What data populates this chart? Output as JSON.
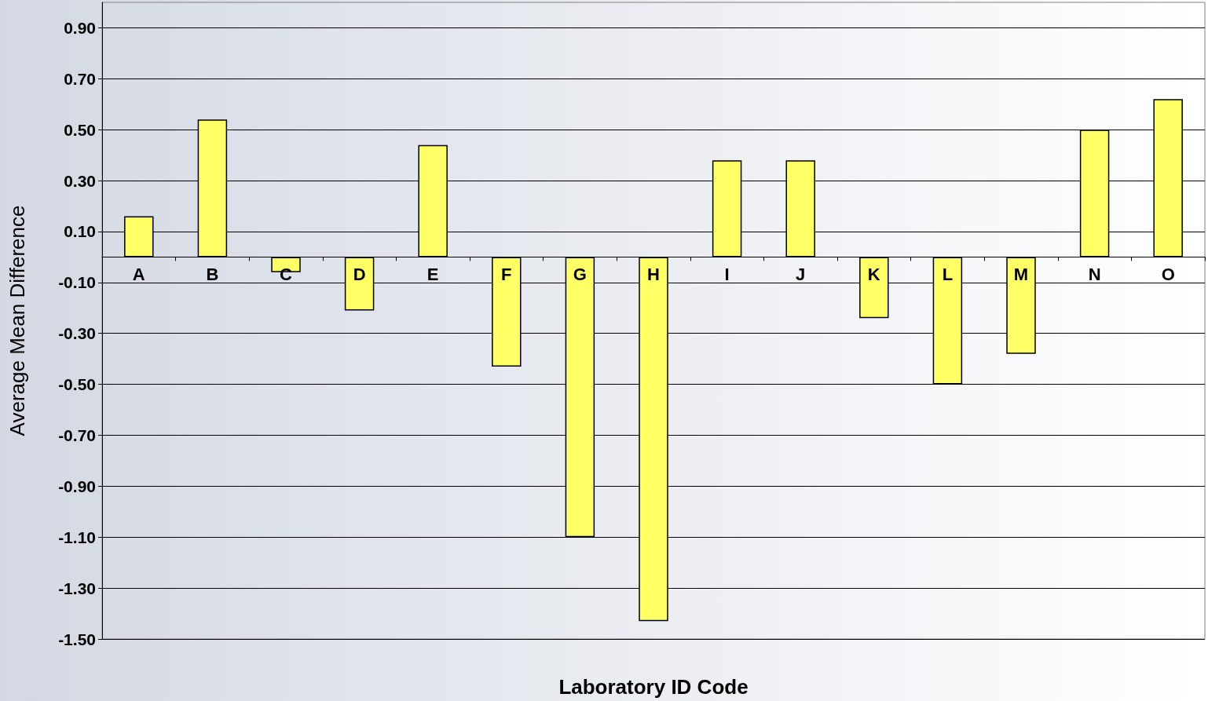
{
  "chart_data": {
    "type": "bar",
    "xlabel": "Laboratory ID Code",
    "ylabel": "Average Mean Difference",
    "categories": [
      "A",
      "B",
      "C",
      "D",
      "E",
      "F",
      "G",
      "H",
      "I",
      "J",
      "K",
      "L",
      "M",
      "N",
      "O"
    ],
    "values": [
      0.16,
      0.54,
      -0.06,
      -0.21,
      0.44,
      -0.43,
      -1.1,
      -1.43,
      0.38,
      0.38,
      -0.24,
      -0.5,
      -0.38,
      0.5,
      0.62
    ],
    "color": "#ffff66",
    "ylim": [
      -1.5,
      1.0
    ],
    "yticks": [
      {
        "value": -1.5,
        "label": "-1.50"
      },
      {
        "value": -1.3,
        "label": "-1.30"
      },
      {
        "value": -1.1,
        "label": "-1.10"
      },
      {
        "value": -0.9,
        "label": "-0.90"
      },
      {
        "value": -0.7,
        "label": "-0.70"
      },
      {
        "value": -0.5,
        "label": "-0.50"
      },
      {
        "value": -0.3,
        "label": "-0.30"
      },
      {
        "value": -0.1,
        "label": "-0.10"
      },
      {
        "value": 0.1,
        "label": "0.10"
      },
      {
        "value": 0.3,
        "label": "0.30"
      },
      {
        "value": 0.5,
        "label": "0.50"
      },
      {
        "value": 0.7,
        "label": "0.70"
      },
      {
        "value": 0.9,
        "label": "0.90"
      }
    ],
    "grid": "y"
  }
}
